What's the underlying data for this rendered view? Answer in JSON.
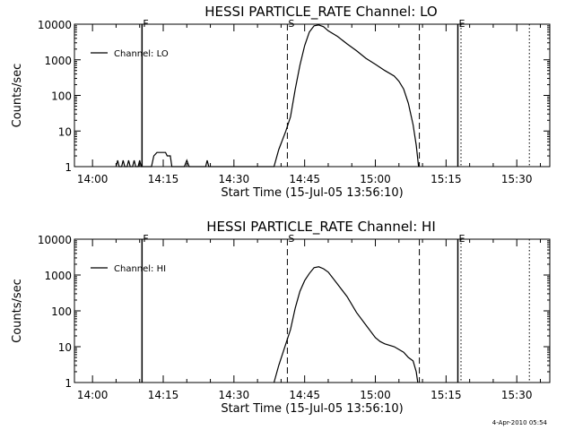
{
  "footer": {
    "timestamp": "4-Apr-2010 05:54"
  },
  "chart_data": [
    {
      "type": "line",
      "title": "HESSI PARTICLE_RATE Channel: LO",
      "xlabel": "Start Time (15-Jul-05 13:56:10)",
      "ylabel": "Counts/sec",
      "yscale": "log",
      "ylim": [
        1,
        10000
      ],
      "xlim": [
        "13:56:10",
        "15:37:00"
      ],
      "x_ticks": [
        "14:00",
        "14:15",
        "14:30",
        "14:45",
        "15:00",
        "15:15",
        "15:30"
      ],
      "y_ticks": [
        "1",
        "10",
        "100",
        "1000",
        "10000"
      ],
      "markers": [
        {
          "label": "F",
          "time": "14:10:30",
          "style": "solid"
        },
        {
          "label": "S",
          "time": "14:41:20",
          "style": "dashed"
        },
        {
          "label": "",
          "time": "15:09:20",
          "style": "dashed"
        },
        {
          "label": "E",
          "time": "15:17:30",
          "style": "solid"
        },
        {
          "label": "",
          "time": "15:18:10",
          "style": "dotted"
        },
        {
          "label": "",
          "time": "15:32:40",
          "style": "dotted"
        }
      ],
      "series": [
        {
          "name": "Channel: LO",
          "points": [
            [
              "14:05:00",
              1
            ],
            [
              "14:05:20",
              1.5
            ],
            [
              "14:05:40",
              1
            ],
            [
              "14:06:10",
              1
            ],
            [
              "14:06:30",
              1.5
            ],
            [
              "14:06:50",
              1
            ],
            [
              "14:07:20",
              1
            ],
            [
              "14:07:40",
              1.5
            ],
            [
              "14:08:00",
              1
            ],
            [
              "14:08:30",
              1
            ],
            [
              "14:08:50",
              1.5
            ],
            [
              "14:09:10",
              1
            ],
            [
              "14:09:40",
              1
            ],
            [
              "14:10:00",
              1.5
            ],
            [
              "14:10:20",
              1
            ],
            [
              "14:11:00",
              1
            ],
            [
              "14:12:30",
              1
            ],
            [
              "14:13:00",
              2
            ],
            [
              "14:13:40",
              2.5
            ],
            [
              "14:15:30",
              2.5
            ],
            [
              "14:15:50",
              2
            ],
            [
              "14:16:30",
              2
            ],
            [
              "14:16:50",
              1
            ],
            [
              "14:19:30",
              1
            ],
            [
              "14:20:00",
              1.5
            ],
            [
              "14:20:30",
              1
            ],
            [
              "14:24:00",
              1
            ],
            [
              "14:24:20",
              1.5
            ],
            [
              "14:24:40",
              1
            ],
            [
              "14:38:30",
              1
            ],
            [
              "14:39:30",
              3
            ],
            [
              "14:41:00",
              10
            ],
            [
              "14:42:00",
              25
            ],
            [
              "14:43:00",
              150
            ],
            [
              "14:44:00",
              700
            ],
            [
              "14:45:00",
              2500
            ],
            [
              "14:46:00",
              6000
            ],
            [
              "14:47:00",
              9000
            ],
            [
              "14:48:00",
              9500
            ],
            [
              "14:49:00",
              8500
            ],
            [
              "14:50:00",
              6500
            ],
            [
              "14:52:00",
              4500
            ],
            [
              "14:54:00",
              2800
            ],
            [
              "14:56:00",
              1800
            ],
            [
              "14:58:00",
              1100
            ],
            [
              "15:00:00",
              750
            ],
            [
              "15:02:00",
              500
            ],
            [
              "15:04:00",
              350
            ],
            [
              "15:05:00",
              250
            ],
            [
              "15:06:00",
              150
            ],
            [
              "15:07:00",
              60
            ],
            [
              "15:08:00",
              15
            ],
            [
              "15:08:40",
              4
            ],
            [
              "15:09:10",
              1
            ]
          ]
        }
      ]
    },
    {
      "type": "line",
      "title": "HESSI PARTICLE_RATE Channel: HI",
      "xlabel": "Start Time (15-Jul-05 13:56:10)",
      "ylabel": "Counts/sec",
      "yscale": "log",
      "ylim": [
        1,
        10000
      ],
      "xlim": [
        "13:56:10",
        "15:37:00"
      ],
      "x_ticks": [
        "14:00",
        "14:15",
        "14:30",
        "14:45",
        "15:00",
        "15:15",
        "15:30"
      ],
      "y_ticks": [
        "1",
        "10",
        "100",
        "1000",
        "10000"
      ],
      "markers": [
        {
          "label": "F",
          "time": "14:10:30",
          "style": "solid"
        },
        {
          "label": "S",
          "time": "14:41:20",
          "style": "dashed"
        },
        {
          "label": "",
          "time": "15:09:20",
          "style": "dashed"
        },
        {
          "label": "E",
          "time": "15:17:30",
          "style": "solid"
        },
        {
          "label": "",
          "time": "15:18:10",
          "style": "dotted"
        },
        {
          "label": "",
          "time": "15:32:40",
          "style": "dotted"
        }
      ],
      "series": [
        {
          "name": "Channel: HI",
          "points": [
            [
              "14:38:30",
              1
            ],
            [
              "14:39:30",
              3
            ],
            [
              "14:41:00",
              12
            ],
            [
              "14:42:00",
              30
            ],
            [
              "14:43:00",
              120
            ],
            [
              "14:44:00",
              350
            ],
            [
              "14:45:00",
              700
            ],
            [
              "14:46:00",
              1100
            ],
            [
              "14:47:00",
              1600
            ],
            [
              "14:48:00",
              1700
            ],
            [
              "14:49:00",
              1500
            ],
            [
              "14:50:00",
              1200
            ],
            [
              "14:52:00",
              550
            ],
            [
              "14:54:00",
              250
            ],
            [
              "14:56:00",
              90
            ],
            [
              "14:58:00",
              40
            ],
            [
              "15:00:00",
              18
            ],
            [
              "15:01:00",
              14
            ],
            [
              "15:02:00",
              12
            ],
            [
              "15:04:00",
              10
            ],
            [
              "15:06:00",
              7
            ],
            [
              "15:07:00",
              5
            ],
            [
              "15:08:00",
              4
            ],
            [
              "15:08:40",
              2
            ],
            [
              "15:09:00",
              1
            ]
          ]
        }
      ]
    }
  ]
}
